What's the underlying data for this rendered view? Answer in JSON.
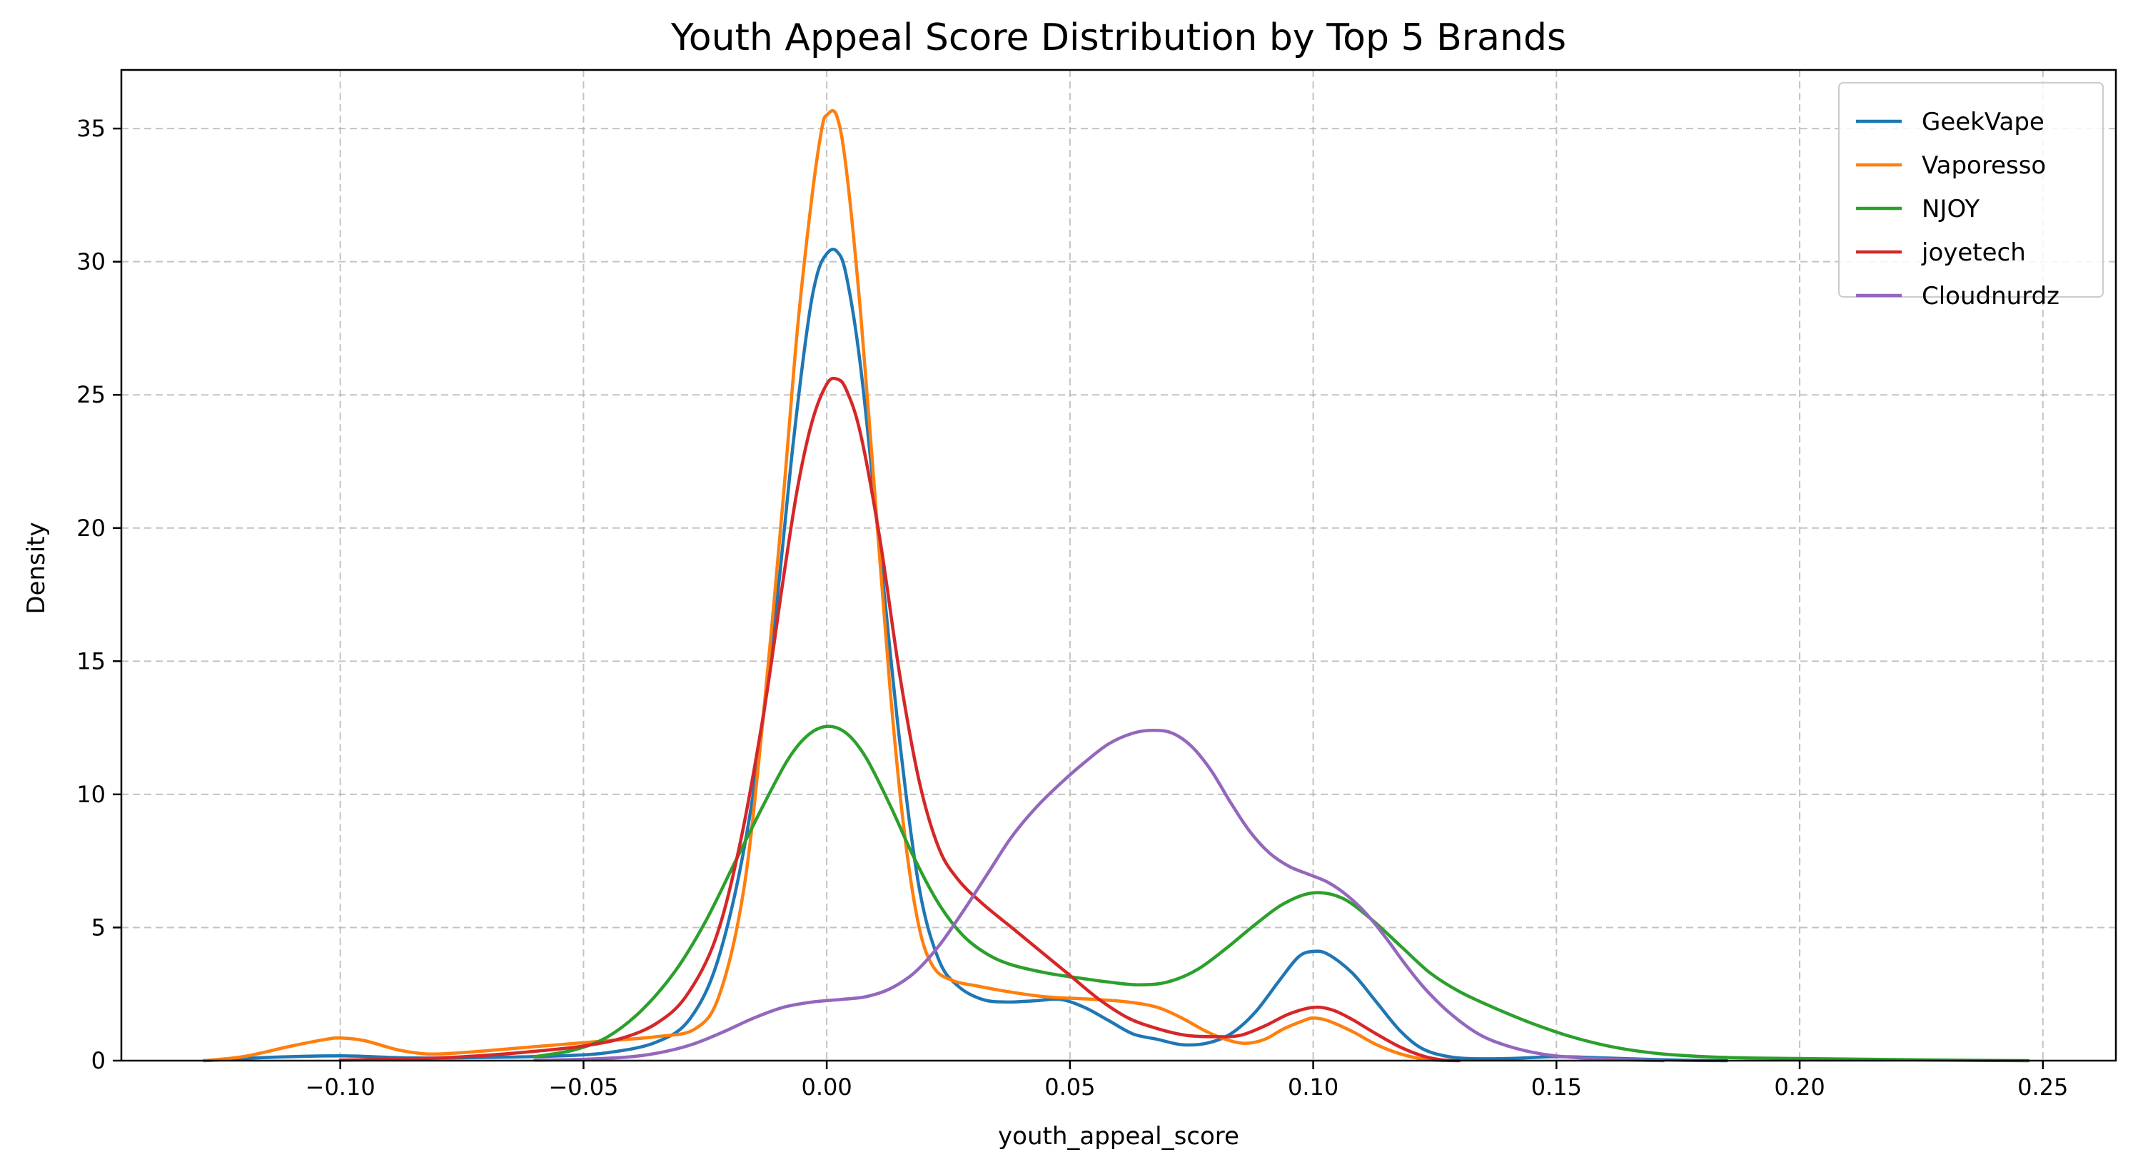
{
  "chart_data": {
    "type": "line",
    "title": "Youth Appeal Score Distribution by Top 5 Brands",
    "xlabel": "youth_appeal_score",
    "ylabel": "Density",
    "xlim": [
      -0.145,
      0.265
    ],
    "ylim": [
      0,
      37.2
    ],
    "xticks": [
      -0.1,
      -0.05,
      0.0,
      0.05,
      0.1,
      0.15,
      0.2,
      0.25
    ],
    "xtick_labels": [
      "−0.10",
      "−0.05",
      "0.00",
      "0.05",
      "0.10",
      "0.15",
      "0.20",
      "0.25"
    ],
    "yticks": [
      0,
      5,
      10,
      15,
      20,
      25,
      30,
      35
    ],
    "ytick_labels": [
      "0",
      "5",
      "10",
      "15",
      "20",
      "25",
      "30",
      "35"
    ],
    "grid": true,
    "legend_position": "top-right",
    "series": [
      {
        "name": "GeekVape",
        "color": "#1f77b4",
        "points": [
          [
            -0.128,
            0
          ],
          [
            -0.115,
            0.12
          ],
          [
            -0.1,
            0.18
          ],
          [
            -0.085,
            0.1
          ],
          [
            -0.07,
            0.12
          ],
          [
            -0.055,
            0.18
          ],
          [
            -0.045,
            0.3
          ],
          [
            -0.035,
            0.7
          ],
          [
            -0.028,
            1.6
          ],
          [
            -0.022,
            4
          ],
          [
            -0.016,
            9
          ],
          [
            -0.011,
            16
          ],
          [
            -0.007,
            23
          ],
          [
            -0.004,
            27.5
          ],
          [
            -0.002,
            29.5
          ],
          [
            0.0,
            30.3
          ],
          [
            0.002,
            30.4
          ],
          [
            0.004,
            29.5
          ],
          [
            0.007,
            26
          ],
          [
            0.011,
            19
          ],
          [
            0.015,
            12
          ],
          [
            0.019,
            6.5
          ],
          [
            0.023,
            3.8
          ],
          [
            0.027,
            2.8
          ],
          [
            0.032,
            2.3
          ],
          [
            0.037,
            2.2
          ],
          [
            0.043,
            2.25
          ],
          [
            0.048,
            2.3
          ],
          [
            0.053,
            2.0
          ],
          [
            0.058,
            1.5
          ],
          [
            0.063,
            1.0
          ],
          [
            0.068,
            0.8
          ],
          [
            0.073,
            0.6
          ],
          [
            0.078,
            0.65
          ],
          [
            0.083,
            1.0
          ],
          [
            0.088,
            1.8
          ],
          [
            0.093,
            3.0
          ],
          [
            0.097,
            3.9
          ],
          [
            0.1,
            4.1
          ],
          [
            0.103,
            4.0
          ],
          [
            0.108,
            3.3
          ],
          [
            0.113,
            2.2
          ],
          [
            0.118,
            1.1
          ],
          [
            0.123,
            0.4
          ],
          [
            0.13,
            0.1
          ],
          [
            0.14,
            0.08
          ],
          [
            0.15,
            0.15
          ],
          [
            0.16,
            0.1
          ],
          [
            0.175,
            0.02
          ],
          [
            0.185,
            0
          ]
        ]
      },
      {
        "name": "Vaporesso",
        "color": "#ff7f0e",
        "points": [
          [
            -0.128,
            0
          ],
          [
            -0.12,
            0.15
          ],
          [
            -0.11,
            0.55
          ],
          [
            -0.103,
            0.8
          ],
          [
            -0.1,
            0.85
          ],
          [
            -0.095,
            0.75
          ],
          [
            -0.088,
            0.4
          ],
          [
            -0.082,
            0.25
          ],
          [
            -0.075,
            0.3
          ],
          [
            -0.065,
            0.45
          ],
          [
            -0.055,
            0.6
          ],
          [
            -0.045,
            0.75
          ],
          [
            -0.035,
            0.9
          ],
          [
            -0.027,
            1.2
          ],
          [
            -0.022,
            2.5
          ],
          [
            -0.017,
            6.5
          ],
          [
            -0.013,
            13
          ],
          [
            -0.009,
            21
          ],
          [
            -0.006,
            27.5
          ],
          [
            -0.003,
            32.5
          ],
          [
            -0.001,
            35
          ],
          [
            0.0,
            35.5
          ],
          [
            0.002,
            35.5
          ],
          [
            0.004,
            33.5
          ],
          [
            0.007,
            28
          ],
          [
            0.01,
            21
          ],
          [
            0.013,
            14
          ],
          [
            0.016,
            8.5
          ],
          [
            0.019,
            5
          ],
          [
            0.022,
            3.5
          ],
          [
            0.026,
            3.0
          ],
          [
            0.031,
            2.8
          ],
          [
            0.037,
            2.6
          ],
          [
            0.045,
            2.4
          ],
          [
            0.055,
            2.3
          ],
          [
            0.062,
            2.2
          ],
          [
            0.068,
            2.0
          ],
          [
            0.073,
            1.6
          ],
          [
            0.078,
            1.1
          ],
          [
            0.082,
            0.8
          ],
          [
            0.086,
            0.65
          ],
          [
            0.09,
            0.8
          ],
          [
            0.094,
            1.2
          ],
          [
            0.098,
            1.5
          ],
          [
            0.1,
            1.6
          ],
          [
            0.103,
            1.5
          ],
          [
            0.108,
            1.1
          ],
          [
            0.113,
            0.6
          ],
          [
            0.118,
            0.25
          ],
          [
            0.123,
            0.05
          ],
          [
            0.128,
            0
          ]
        ]
      },
      {
        "name": "NJOY",
        "color": "#2ca02c",
        "points": [
          [
            -0.06,
            0.15
          ],
          [
            -0.052,
            0.4
          ],
          [
            -0.045,
            0.9
          ],
          [
            -0.038,
            1.9
          ],
          [
            -0.031,
            3.4
          ],
          [
            -0.025,
            5.2
          ],
          [
            -0.019,
            7.4
          ],
          [
            -0.013,
            9.6
          ],
          [
            -0.008,
            11.3
          ],
          [
            -0.004,
            12.2
          ],
          [
            0.0,
            12.55
          ],
          [
            0.004,
            12.3
          ],
          [
            0.008,
            11.4
          ],
          [
            0.013,
            9.6
          ],
          [
            0.018,
            7.6
          ],
          [
            0.023,
            5.9
          ],
          [
            0.028,
            4.7
          ],
          [
            0.033,
            4.0
          ],
          [
            0.038,
            3.6
          ],
          [
            0.045,
            3.3
          ],
          [
            0.052,
            3.1
          ],
          [
            0.058,
            2.95
          ],
          [
            0.064,
            2.85
          ],
          [
            0.07,
            2.95
          ],
          [
            0.076,
            3.4
          ],
          [
            0.082,
            4.2
          ],
          [
            0.088,
            5.1
          ],
          [
            0.094,
            5.9
          ],
          [
            0.1,
            6.3
          ],
          [
            0.106,
            6.1
          ],
          [
            0.112,
            5.3
          ],
          [
            0.118,
            4.3
          ],
          [
            0.124,
            3.3
          ],
          [
            0.13,
            2.6
          ],
          [
            0.137,
            2.0
          ],
          [
            0.145,
            1.4
          ],
          [
            0.153,
            0.9
          ],
          [
            0.162,
            0.5
          ],
          [
            0.172,
            0.25
          ],
          [
            0.185,
            0.12
          ],
          [
            0.2,
            0.08
          ],
          [
            0.215,
            0.05
          ],
          [
            0.23,
            0.02
          ],
          [
            0.247,
            0
          ]
        ]
      },
      {
        "name": "joyetech",
        "color": "#d62728",
        "points": [
          [
            -0.1,
            0.02
          ],
          [
            -0.09,
            0.05
          ],
          [
            -0.08,
            0.1
          ],
          [
            -0.07,
            0.2
          ],
          [
            -0.06,
            0.35
          ],
          [
            -0.05,
            0.55
          ],
          [
            -0.042,
            0.85
          ],
          [
            -0.035,
            1.4
          ],
          [
            -0.029,
            2.4
          ],
          [
            -0.023,
            4.5
          ],
          [
            -0.018,
            8
          ],
          [
            -0.013,
            13
          ],
          [
            -0.009,
            18
          ],
          [
            -0.006,
            21.5
          ],
          [
            -0.003,
            24
          ],
          [
            0.0,
            25.4
          ],
          [
            0.002,
            25.6
          ],
          [
            0.004,
            25.2
          ],
          [
            0.007,
            23.5
          ],
          [
            0.011,
            19.5
          ],
          [
            0.015,
            14.5
          ],
          [
            0.019,
            10.5
          ],
          [
            0.023,
            8.0
          ],
          [
            0.027,
            6.8
          ],
          [
            0.032,
            5.9
          ],
          [
            0.038,
            5.0
          ],
          [
            0.044,
            4.1
          ],
          [
            0.05,
            3.2
          ],
          [
            0.056,
            2.3
          ],
          [
            0.062,
            1.6
          ],
          [
            0.068,
            1.2
          ],
          [
            0.074,
            0.95
          ],
          [
            0.08,
            0.9
          ],
          [
            0.085,
            0.95
          ],
          [
            0.09,
            1.3
          ],
          [
            0.095,
            1.75
          ],
          [
            0.1,
            2.0
          ],
          [
            0.104,
            1.9
          ],
          [
            0.108,
            1.55
          ],
          [
            0.113,
            1.0
          ],
          [
            0.118,
            0.5
          ],
          [
            0.123,
            0.15
          ],
          [
            0.127,
            0.02
          ],
          [
            0.13,
            0
          ]
        ]
      },
      {
        "name": "Cloudnurdz",
        "color": "#9467bd",
        "points": [
          [
            -0.06,
            0.02
          ],
          [
            -0.05,
            0.05
          ],
          [
            -0.04,
            0.15
          ],
          [
            -0.033,
            0.35
          ],
          [
            -0.027,
            0.65
          ],
          [
            -0.021,
            1.1
          ],
          [
            -0.015,
            1.6
          ],
          [
            -0.009,
            2.0
          ],
          [
            -0.003,
            2.2
          ],
          [
            0.003,
            2.3
          ],
          [
            0.008,
            2.4
          ],
          [
            0.013,
            2.7
          ],
          [
            0.018,
            3.3
          ],
          [
            0.023,
            4.3
          ],
          [
            0.028,
            5.6
          ],
          [
            0.033,
            7.0
          ],
          [
            0.038,
            8.4
          ],
          [
            0.043,
            9.5
          ],
          [
            0.048,
            10.4
          ],
          [
            0.053,
            11.2
          ],
          [
            0.058,
            11.9
          ],
          [
            0.063,
            12.3
          ],
          [
            0.067,
            12.4
          ],
          [
            0.071,
            12.3
          ],
          [
            0.075,
            11.8
          ],
          [
            0.079,
            10.9
          ],
          [
            0.083,
            9.7
          ],
          [
            0.087,
            8.6
          ],
          [
            0.091,
            7.8
          ],
          [
            0.095,
            7.3
          ],
          [
            0.099,
            7.0
          ],
          [
            0.103,
            6.7
          ],
          [
            0.107,
            6.2
          ],
          [
            0.111,
            5.5
          ],
          [
            0.115,
            4.6
          ],
          [
            0.119,
            3.6
          ],
          [
            0.123,
            2.7
          ],
          [
            0.128,
            1.8
          ],
          [
            0.134,
            1.0
          ],
          [
            0.14,
            0.55
          ],
          [
            0.147,
            0.25
          ],
          [
            0.155,
            0.1
          ],
          [
            0.165,
            0.03
          ],
          [
            0.172,
            0
          ]
        ]
      }
    ]
  }
}
